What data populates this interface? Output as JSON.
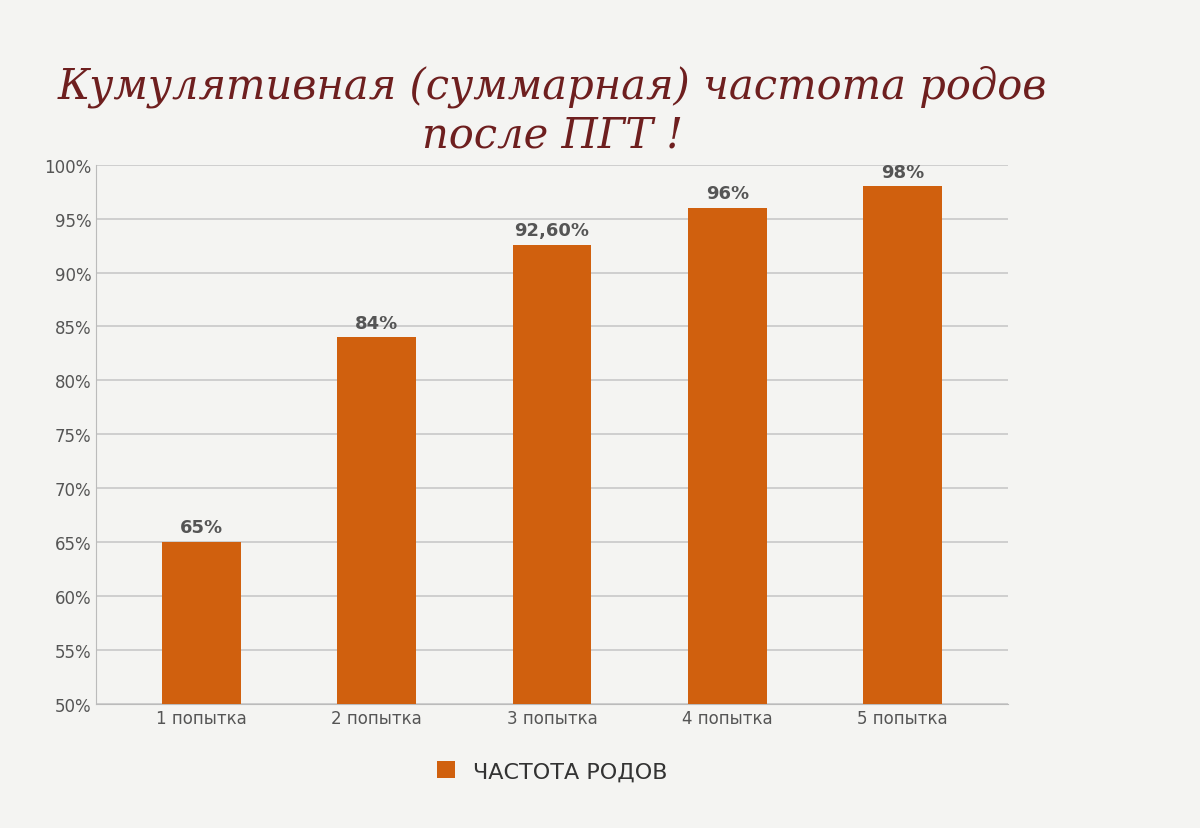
{
  "chart_data": {
    "type": "bar",
    "title": "Кумулятивная (суммарная) частота родов после ПГТ !",
    "categories": [
      "1 попытка",
      "2 попытка",
      "3 попытка",
      "4 попытка",
      "5 попытка"
    ],
    "series": [
      {
        "name": "ЧАСТОТА РОДОВ",
        "color": "#d0600e",
        "values": [
          65,
          84,
          92.6,
          96,
          98
        ],
        "value_labels": [
          "65%",
          "84%",
          "92,60%",
          "96%",
          "98%"
        ]
      }
    ],
    "ylim": [
      50,
      100
    ],
    "yticks": [
      {
        "value": 50,
        "label": "50%"
      },
      {
        "value": 55,
        "label": "55%"
      },
      {
        "value": 60,
        "label": "60%"
      },
      {
        "value": 65,
        "label": "65%"
      },
      {
        "value": 70,
        "label": "70%"
      },
      {
        "value": 75,
        "label": "75%"
      },
      {
        "value": 80,
        "label": "80%"
      },
      {
        "value": 85,
        "label": "85%"
      },
      {
        "value": 90,
        "label": "90%"
      },
      {
        "value": 95,
        "label": "95%"
      },
      {
        "value": 100,
        "label": "100%"
      }
    ],
    "grid": true,
    "data_labels": true,
    "legend": "bottom"
  }
}
